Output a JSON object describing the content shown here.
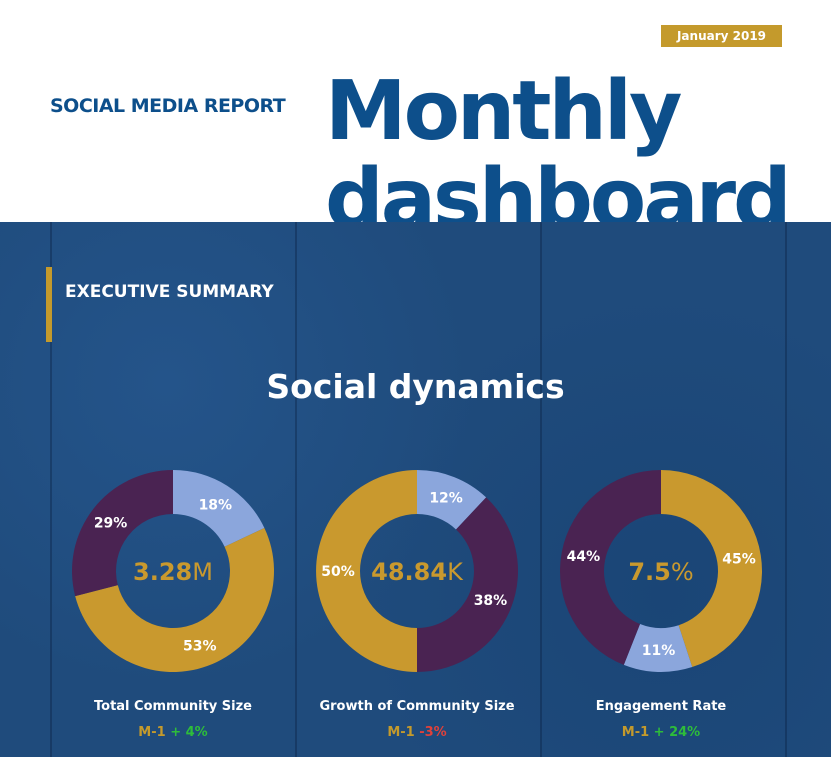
{
  "header": {
    "date": "January 2019",
    "subtitle": "SOCIAL MEDIA REPORT",
    "title_line1": "Monthly",
    "title_line2": "dashboard"
  },
  "section": {
    "heading": "EXECUTIVE SUMMARY",
    "title": "Social dynamics"
  },
  "colors": {
    "gold": "#c9992e",
    "purple": "#4a2352",
    "light_blue": "#8ba6dc",
    "green": "#2ebd3a",
    "red": "#e0413a"
  },
  "chart_data": [
    {
      "type": "pie",
      "title": "Total Community Size",
      "center_value": "3.28",
      "center_unit": "M",
      "delta_prefix": "M-1",
      "delta": "+ 4%",
      "delta_color": "green",
      "slices": [
        {
          "value": 18,
          "color": "light_blue"
        },
        {
          "value": 53,
          "color": "gold"
        },
        {
          "value": 29,
          "color": "purple"
        }
      ]
    },
    {
      "type": "pie",
      "title": "Growth of Community Size",
      "center_value": "48.84",
      "center_unit": "K",
      "delta_prefix": "M-1",
      "delta": "-3%",
      "delta_color": "red",
      "slices": [
        {
          "value": 12,
          "color": "light_blue"
        },
        {
          "value": 38,
          "color": "purple"
        },
        {
          "value": 50,
          "color": "gold"
        }
      ]
    },
    {
      "type": "pie",
      "title": "Engagement Rate",
      "center_value": "7.5",
      "center_unit": "%",
      "delta_prefix": "M-1",
      "delta": "+ 24%",
      "delta_color": "green",
      "slices": [
        {
          "value": 45,
          "color": "gold"
        },
        {
          "value": 11,
          "color": "light_blue"
        },
        {
          "value": 44,
          "color": "purple"
        }
      ]
    }
  ]
}
